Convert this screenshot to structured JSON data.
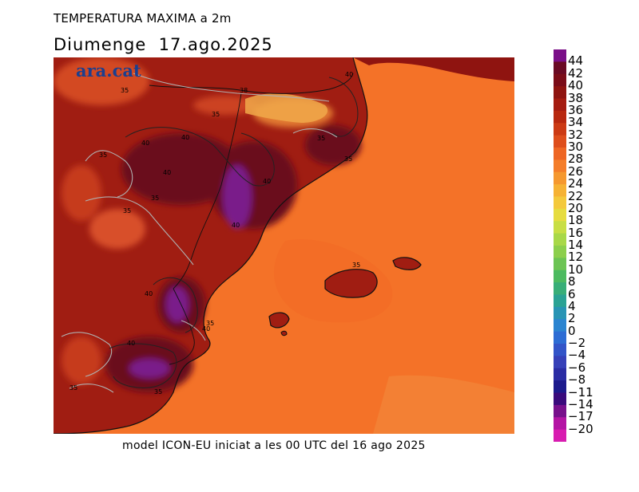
{
  "header": {
    "title": "TEMPERATURA MAXIMA a 2m",
    "subtitle": "Diumenge  17.ago.2025"
  },
  "logo": {
    "text": "ara.cat"
  },
  "footer": {
    "text": "model ICON-EU iniciat a les 00 UTC del 16 ago 2025"
  },
  "map": {
    "contour_labels": [
      "40",
      "38",
      "35",
      "35",
      "40",
      "40",
      "35",
      "35",
      "40",
      "40",
      "35",
      "35",
      "40",
      "35",
      "40",
      "35",
      "40",
      "40",
      "35",
      "35",
      "35"
    ],
    "colors": {
      "sea": "#f47228",
      "land_base": "#a01d12",
      "hot_land": "#6b0a1c",
      "hottest": "#7a1a8a",
      "cool_land": "#e0522a",
      "mountain": "#f09a40"
    }
  },
  "colorbar": {
    "labels": [
      "44",
      "42",
      "40",
      "38",
      "36",
      "34",
      "32",
      "30",
      "28",
      "26",
      "24",
      "22",
      "20",
      "18",
      "16",
      "14",
      "12",
      "10",
      "8",
      "6",
      "4",
      "2",
      "0",
      "−2",
      "−4",
      "−6",
      "−8",
      "−11",
      "−14",
      "−17",
      "−20"
    ],
    "colors": [
      "#7a0f88",
      "#6a0a24",
      "#7b0c18",
      "#8f1410",
      "#a51c10",
      "#b8280f",
      "#cc3a14",
      "#de4e1c",
      "#ee6624",
      "#f47d2a",
      "#f5982f",
      "#f6b234",
      "#f4c93c",
      "#e6dc40",
      "#c8de44",
      "#a8d848",
      "#8ccf4c",
      "#6cc454",
      "#4cba60",
      "#38ae78",
      "#2aa294",
      "#2894b4",
      "#2a84d0",
      "#2c6cd4",
      "#3254c8",
      "#3640b8",
      "#2a2ca4",
      "#1c1a8c",
      "#3a0a7c",
      "#78108c",
      "#b414a4",
      "#d81cb0"
    ]
  }
}
